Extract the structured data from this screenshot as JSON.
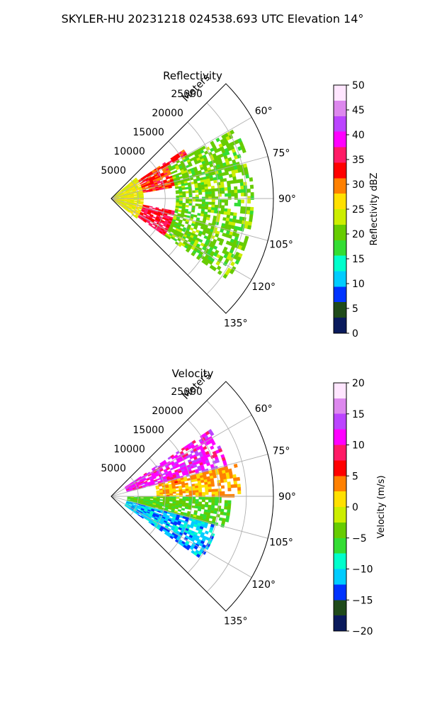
{
  "figure": {
    "title": "SKYLER-HU  20231218  024538.693 UTC Elevation 14°"
  },
  "chart_data": [
    {
      "type": "heatmap",
      "projection": "polar-sector",
      "title": "Reflectivity",
      "range_label": "Meters",
      "range_ticks": [
        5000,
        10000,
        15000,
        20000,
        25000
      ],
      "range_tick_labels": [
        "5000",
        "10000",
        "15000",
        "20000",
        "25000"
      ],
      "rlim": [
        0,
        30000
      ],
      "theta_ticks": [
        60,
        75,
        90,
        105,
        120,
        135
      ],
      "theta_tick_labels": [
        "60°",
        "75°",
        "90°",
        "105°",
        "120°",
        "135°"
      ],
      "theta_range": [
        45,
        135
      ],
      "theta_zero": "north",
      "theta_direction": "clockwise",
      "grid": true,
      "colorbar": {
        "label": "Reflectivity dBZ",
        "range": [
          0,
          50
        ],
        "ticks": [
          0,
          5,
          10,
          15,
          20,
          25,
          30,
          35,
          40,
          45,
          50
        ],
        "tick_labels": [
          "0",
          "5",
          "10",
          "15",
          "20",
          "25",
          "30",
          "35",
          "40",
          "45",
          "50"
        ],
        "stops": [
          "#0a1a5c",
          "#1f4a1a",
          "#0033ff",
          "#00ccff",
          "#00ffcc",
          "#33dd33",
          "#66cc00",
          "#ccee00",
          "#ffe000",
          "#ff8000",
          "#ff0000",
          "#ff1a66",
          "#ff00ff",
          "#bb44ff",
          "#dd88ee",
          "#ffe6ff"
        ]
      },
      "field_summary": [
        {
          "range_m": [
            0,
            6000
          ],
          "az_deg": [
            50,
            135
          ],
          "value_dbz": 25
        },
        {
          "range_m": [
            6000,
            16000
          ],
          "az_deg": [
            55,
            80
          ],
          "value_dbz": 33
        },
        {
          "range_m": [
            6000,
            16000
          ],
          "az_deg": [
            100,
            125
          ],
          "value_dbz": 35
        },
        {
          "range_m": [
            12000,
            26000
          ],
          "az_deg": [
            60,
            125
          ],
          "value_dbz": 20
        }
      ]
    },
    {
      "type": "heatmap",
      "projection": "polar-sector",
      "title": "Velocity",
      "range_label": "Meters",
      "range_ticks": [
        5000,
        10000,
        15000,
        20000,
        25000
      ],
      "range_tick_labels": [
        "5000",
        "10000",
        "15000",
        "20000",
        "25000"
      ],
      "rlim": [
        0,
        30000
      ],
      "theta_ticks": [
        60,
        75,
        90,
        105,
        120,
        135
      ],
      "theta_tick_labels": [
        "60°",
        "75°",
        "90°",
        "105°",
        "120°",
        "135°"
      ],
      "theta_range": [
        45,
        135
      ],
      "theta_zero": "north",
      "theta_direction": "clockwise",
      "grid": true,
      "colorbar": {
        "label": "Velocity (m/s)",
        "range": [
          -20,
          20
        ],
        "ticks": [
          -20,
          -15,
          -10,
          -5,
          0,
          5,
          10,
          15,
          20
        ],
        "tick_labels": [
          "−20",
          "−15",
          "−10",
          "−5",
          "0",
          "5",
          "10",
          "15",
          "20"
        ],
        "stops": [
          "#0a1a5c",
          "#1f4a1a",
          "#0033ff",
          "#00ccff",
          "#00ffcc",
          "#33dd33",
          "#66cc00",
          "#ccee00",
          "#ffe000",
          "#ff8000",
          "#ff0000",
          "#ff1a66",
          "#ff00ff",
          "#bb44ff",
          "#dd88ee",
          "#ffe6ff"
        ]
      },
      "field_summary": [
        {
          "range_m": [
            3000,
            22000
          ],
          "az_deg": [
            55,
            75
          ],
          "value_ms": 12
        },
        {
          "range_m": [
            8000,
            24000
          ],
          "az_deg": [
            75,
            90
          ],
          "value_ms": 3
        },
        {
          "range_m": [
            3000,
            22000
          ],
          "az_deg": [
            90,
            105
          ],
          "value_ms": -5
        },
        {
          "range_m": [
            3000,
            20000
          ],
          "az_deg": [
            105,
            125
          ],
          "value_ms": -12
        }
      ]
    }
  ]
}
